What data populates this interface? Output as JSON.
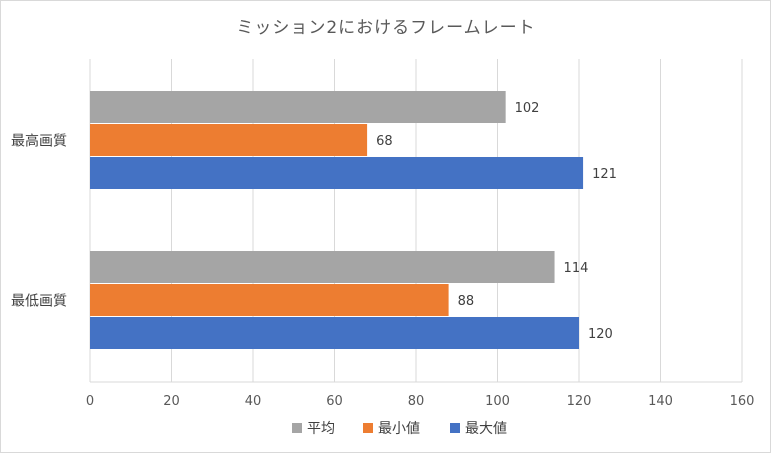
{
  "chart_data": {
    "type": "bar",
    "orientation": "horizontal",
    "title": "ミッション2におけるフレームレート",
    "categories": [
      "最高画質",
      "最低画質"
    ],
    "series": [
      {
        "name": "平均",
        "values": [
          102,
          114
        ],
        "color": "#a5a5a5"
      },
      {
        "name": "最小値",
        "values": [
          68,
          88
        ],
        "color": "#ed7d31"
      },
      {
        "name": "最大値",
        "values": [
          121,
          120
        ],
        "color": "#4472c4"
      }
    ],
    "xlim": [
      0,
      160
    ],
    "x_ticks": [
      "0",
      "20",
      "40",
      "60",
      "80",
      "100",
      "120",
      "140",
      "160"
    ],
    "data_labels": true,
    "grid": true,
    "legend_position": "bottom"
  }
}
